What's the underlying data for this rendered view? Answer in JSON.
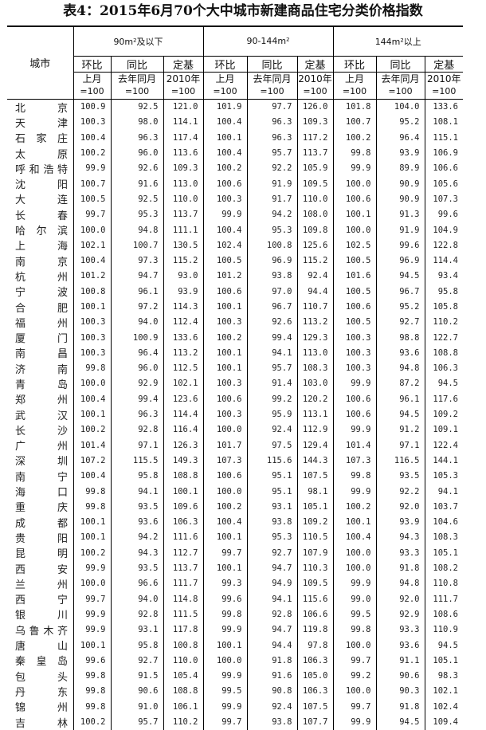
{
  "title": "表4：2015年6月70个大中城市新建商品住宅分类价格指数",
  "header": {
    "city": "城市",
    "groups": [
      "90m²及以下",
      "90-144m²",
      "144m²以上"
    ],
    "sub": [
      "环比",
      "同比",
      "定基"
    ],
    "base_top": [
      "上月",
      "去年同月",
      "2010年"
    ],
    "base_bottom": "=100"
  },
  "rows": [
    [
      "北京",
      100.9,
      92.5,
      121.0,
      101.9,
      97.7,
      126.0,
      101.8,
      104.0,
      133.6
    ],
    [
      "天津",
      100.3,
      98.0,
      114.1,
      100.4,
      96.3,
      109.3,
      100.7,
      95.2,
      108.1
    ],
    [
      "石家庄",
      100.4,
      96.3,
      117.4,
      100.1,
      96.3,
      117.2,
      100.2,
      96.4,
      115.1
    ],
    [
      "太原",
      100.2,
      96.0,
      113.6,
      100.4,
      95.7,
      113.7,
      99.8,
      93.9,
      106.9
    ],
    [
      "呼和浩特",
      99.9,
      92.6,
      109.3,
      100.2,
      92.2,
      105.9,
      99.9,
      89.9,
      106.6
    ],
    [
      "沈阳",
      100.7,
      91.6,
      113.0,
      100.6,
      91.9,
      109.5,
      100.0,
      90.9,
      105.6
    ],
    [
      "大连",
      100.5,
      92.5,
      110.0,
      100.3,
      91.7,
      110.0,
      100.6,
      90.9,
      107.3
    ],
    [
      "长春",
      99.7,
      95.3,
      113.7,
      99.9,
      94.2,
      108.0,
      100.1,
      91.3,
      99.6
    ],
    [
      "哈尔滨",
      100.0,
      94.8,
      111.1,
      100.4,
      95.3,
      109.8,
      100.0,
      91.9,
      104.9
    ],
    [
      "上海",
      102.1,
      100.7,
      130.5,
      102.4,
      100.8,
      125.6,
      102.5,
      99.6,
      122.8
    ],
    [
      "南京",
      100.4,
      97.3,
      115.2,
      100.5,
      96.9,
      115.2,
      100.5,
      96.9,
      114.4
    ],
    [
      "杭州",
      101.2,
      94.7,
      93.0,
      101.2,
      93.8,
      92.4,
      101.6,
      94.5,
      93.4
    ],
    [
      "宁波",
      100.8,
      96.1,
      93.9,
      100.6,
      97.0,
      94.4,
      100.5,
      96.7,
      95.8
    ],
    [
      "合肥",
      100.1,
      97.2,
      114.3,
      100.1,
      96.7,
      110.7,
      100.6,
      95.2,
      105.8
    ],
    [
      "福州",
      100.3,
      94.0,
      112.4,
      100.3,
      92.6,
      113.2,
      100.5,
      92.7,
      110.2
    ],
    [
      "厦门",
      100.3,
      100.9,
      133.6,
      100.2,
      99.4,
      129.3,
      100.3,
      98.8,
      122.7
    ],
    [
      "南昌",
      100.3,
      96.4,
      113.2,
      100.1,
      94.1,
      113.0,
      100.3,
      93.6,
      108.8
    ],
    [
      "济南",
      99.8,
      96.0,
      112.5,
      100.1,
      95.7,
      108.3,
      100.3,
      94.8,
      106.3
    ],
    [
      "青岛",
      100.0,
      92.9,
      102.1,
      100.3,
      91.4,
      103.0,
      99.9,
      87.2,
      94.5
    ],
    [
      "郑州",
      100.4,
      99.4,
      123.6,
      100.6,
      99.2,
      120.2,
      100.6,
      96.1,
      117.6
    ],
    [
      "武汉",
      100.1,
      96.3,
      114.4,
      100.3,
      95.9,
      113.1,
      100.6,
      94.5,
      109.2
    ],
    [
      "长沙",
      100.2,
      92.8,
      116.4,
      100.0,
      92.4,
      112.9,
      99.9,
      91.2,
      109.1
    ],
    [
      "广州",
      101.4,
      97.1,
      126.3,
      101.7,
      97.5,
      129.4,
      101.4,
      97.1,
      122.4
    ],
    [
      "深圳",
      107.2,
      115.5,
      149.3,
      107.3,
      115.6,
      144.3,
      107.3,
      116.5,
      144.1
    ],
    [
      "南宁",
      100.4,
      95.8,
      108.8,
      100.6,
      95.1,
      107.5,
      99.8,
      93.5,
      105.3
    ],
    [
      "海口",
      99.8,
      94.1,
      100.1,
      100.0,
      95.1,
      98.1,
      99.9,
      92.2,
      94.1
    ],
    [
      "重庆",
      99.8,
      93.5,
      109.6,
      100.2,
      93.1,
      105.1,
      100.2,
      92.0,
      103.7
    ],
    [
      "成都",
      100.1,
      93.6,
      106.3,
      100.4,
      93.8,
      109.2,
      100.1,
      93.9,
      104.6
    ],
    [
      "贵阳",
      100.1,
      94.2,
      111.6,
      100.1,
      95.3,
      110.5,
      100.4,
      94.3,
      108.3
    ],
    [
      "昆明",
      100.2,
      94.3,
      112.7,
      99.7,
      92.7,
      107.9,
      100.0,
      93.3,
      105.1
    ],
    [
      "西安",
      99.9,
      93.5,
      113.7,
      100.1,
      94.7,
      110.3,
      100.0,
      91.8,
      108.2
    ],
    [
      "兰州",
      100.0,
      96.6,
      111.7,
      99.3,
      94.9,
      109.5,
      99.9,
      94.8,
      110.8
    ],
    [
      "西宁",
      99.7,
      94.0,
      114.8,
      99.6,
      94.1,
      115.6,
      99.0,
      92.0,
      111.7
    ],
    [
      "银川",
      99.9,
      92.8,
      111.5,
      99.8,
      92.8,
      106.6,
      99.5,
      92.9,
      108.6
    ],
    [
      "乌鲁木齐",
      99.9,
      93.1,
      117.8,
      99.9,
      94.7,
      119.8,
      99.8,
      93.3,
      110.9
    ],
    [
      "唐山",
      100.1,
      95.8,
      100.8,
      100.1,
      94.4,
      97.8,
      100.0,
      93.6,
      94.5
    ],
    [
      "秦皇岛",
      99.6,
      92.7,
      110.0,
      100.0,
      91.8,
      106.3,
      99.7,
      91.1,
      105.1
    ],
    [
      "包头",
      99.8,
      91.5,
      105.4,
      99.9,
      91.6,
      105.0,
      99.2,
      90.6,
      98.3
    ],
    [
      "丹东",
      99.8,
      90.6,
      108.8,
      99.5,
      90.8,
      106.3,
      100.0,
      90.3,
      102.1
    ],
    [
      "锦州",
      99.8,
      91.0,
      106.1,
      99.9,
      92.4,
      107.5,
      99.7,
      91.8,
      102.4
    ],
    [
      "吉林",
      100.2,
      95.7,
      110.2,
      99.7,
      93.8,
      107.7,
      99.9,
      94.5,
      109.4
    ]
  ]
}
